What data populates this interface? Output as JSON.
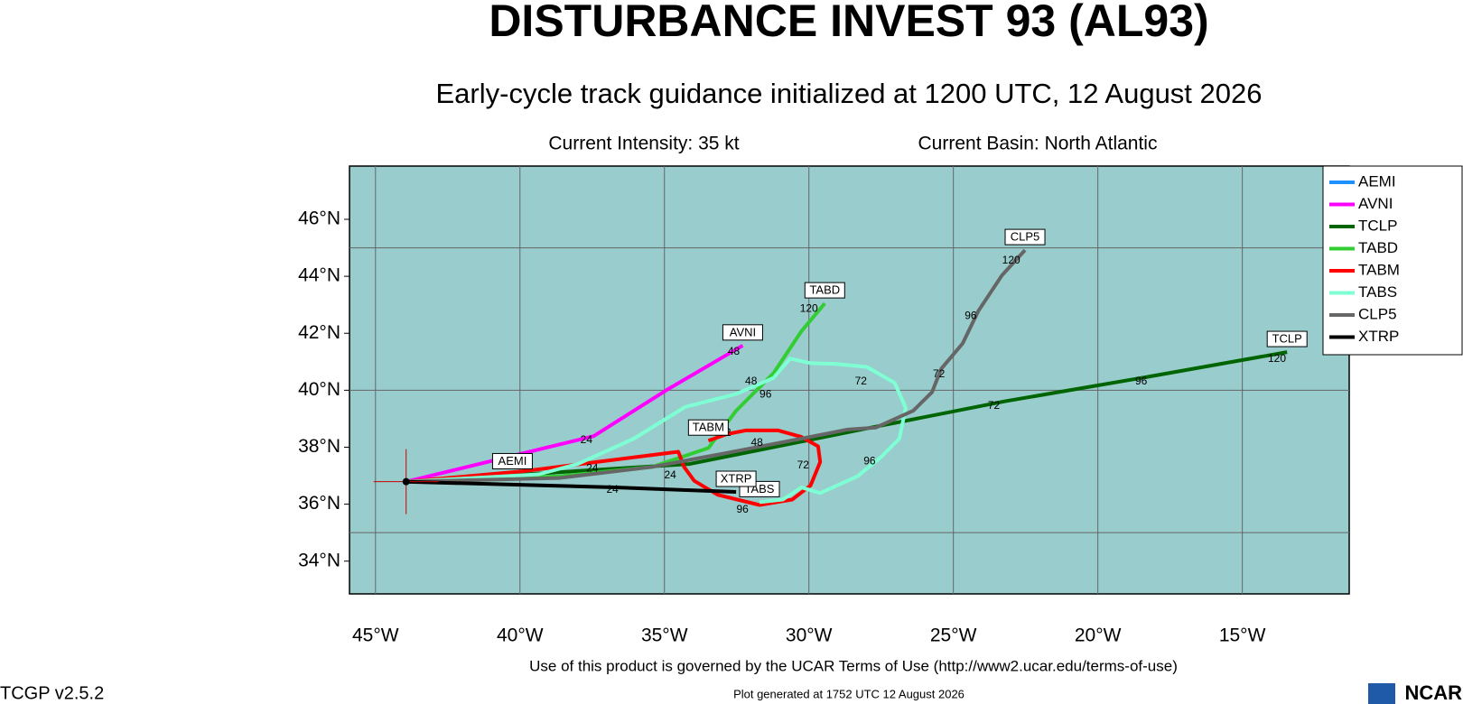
{
  "chart_data": {
    "type": "track",
    "title": "DISTURBANCE INVEST 93 (AL93)",
    "subtitle": "Early-cycle track guidance initialized at 1200 UTC, 12 August 2026",
    "info": [
      "Current Intensity: 35 kt",
      "Current Basin: North Atlantic"
    ],
    "footer": "Use of this product is governed by the UCAR Terms of Use (http://www2.ucar.edu/terms-of-use)",
    "generated": "Plot generated at 1752 UTC   12 August 2026",
    "version": "TCGP v2.5.2",
    "logo": "NCAR",
    "xlim": [
      -45.9,
      -11.3
    ],
    "ylim": [
      32.85,
      47.87
    ],
    "xticks": [
      {
        "value": -45,
        "label": "45°W"
      },
      {
        "value": -40,
        "label": "40°W"
      },
      {
        "value": -35,
        "label": "35°W"
      },
      {
        "value": -30,
        "label": "30°W"
      },
      {
        "value": -25,
        "label": "25°W"
      },
      {
        "value": -20,
        "label": "20°W"
      },
      {
        "value": -15,
        "label": "15°W"
      }
    ],
    "yticks": [
      {
        "value": 34,
        "label": "34°N"
      },
      {
        "value": 36,
        "label": "36°N"
      },
      {
        "value": 38,
        "label": "38°N"
      },
      {
        "value": 40,
        "label": "40°N"
      },
      {
        "value": 42,
        "label": "42°N"
      },
      {
        "value": 44,
        "label": "44°N"
      },
      {
        "value": 46,
        "label": "46°N"
      }
    ],
    "grid_lat": [
      35,
      40,
      45
    ],
    "series": [
      {
        "name": "AEMI",
        "color": "#1e90ff",
        "x": [
          -43.94,
          -40.26
        ],
        "values": [
          36.79,
          37.05
        ]
      },
      {
        "name": "AVNI",
        "color": "#ff00ff",
        "x": [
          -43.94,
          -37.45,
          -34.94,
          -32.29
        ],
        "values": [
          36.79,
          38.39,
          40.0,
          41.57
        ]
      },
      {
        "name": "TCLP",
        "color": "#006400",
        "x": [
          -43.94,
          -34.13,
          -27.84,
          -23.23,
          -18.16,
          -13.45
        ],
        "values": [
          36.79,
          37.41,
          38.69,
          39.61,
          40.49,
          41.34
        ]
      },
      {
        "name": "TABD",
        "color": "#32cd32",
        "x": [
          -43.94,
          -38.65,
          -35.42,
          -33.48,
          -32.52,
          -31.23,
          -30.26,
          -29.45
        ],
        "values": [
          36.79,
          36.98,
          37.31,
          37.97,
          39.28,
          40.59,
          42.07,
          43.05
        ]
      },
      {
        "name": "TABM",
        "color": "#ff0000",
        "x": [
          -43.94,
          -39.94,
          -37.35,
          -34.52,
          -34.32,
          -33.97,
          -33.16,
          -31.71,
          -30.58,
          -29.94,
          -29.61,
          -29.68,
          -30.26,
          -31.06,
          -32.19,
          -32.84,
          -33.48
        ],
        "values": [
          36.79,
          37.15,
          37.48,
          37.84,
          37.31,
          36.82,
          36.33,
          35.97,
          36.16,
          36.66,
          37.48,
          38.03,
          38.36,
          38.59,
          38.59,
          38.46,
          38.23
        ]
      },
      {
        "name": "TABS",
        "color": "#7fffd4",
        "x": [
          -43.94,
          -39.35,
          -38.0,
          -36.06,
          -34.29,
          -32.52,
          -31.23,
          -30.65,
          -29.94,
          -29.06,
          -28.0,
          -27.03,
          -26.65,
          -26.87,
          -27.52,
          -28.32,
          -29.61,
          -30.26,
          -30.9,
          -31.71
        ],
        "values": [
          36.79,
          37.05,
          37.41,
          38.3,
          39.41,
          39.87,
          40.43,
          41.11,
          40.95,
          40.92,
          40.82,
          40.26,
          39.38,
          38.3,
          37.64,
          36.98,
          36.39,
          36.59,
          36.16,
          36.07
        ]
      },
      {
        "name": "CLP5",
        "color": "#666666",
        "x": [
          -43.94,
          -38.65,
          -35.42,
          -32.84,
          -30.26,
          -28.65,
          -27.68,
          -26.39,
          -25.74,
          -25.42,
          -24.68,
          -24.13,
          -23.32,
          -22.52
        ],
        "values": [
          36.79,
          36.92,
          37.31,
          37.8,
          38.3,
          38.62,
          38.69,
          39.28,
          39.93,
          40.75,
          41.64,
          42.79,
          44.03,
          44.92
        ]
      },
      {
        "name": "XTRP",
        "color": "#000000",
        "x": [
          -43.94,
          -39.29,
          -36.71,
          -34.13,
          -32.52
        ],
        "values": [
          36.79,
          36.66,
          36.59,
          36.49,
          36.43
        ]
      }
    ],
    "annotations": [
      {
        "text": "24",
        "x": -37.7,
        "y": 38.25
      },
      {
        "text": "48",
        "x": -32.6,
        "y": 41.35
      },
      {
        "text": "24",
        "x": -36.8,
        "y": 36.5
      },
      {
        "text": "72",
        "x": -23.6,
        "y": 39.45
      },
      {
        "text": "96",
        "x": -18.5,
        "y": 40.3
      },
      {
        "text": "120",
        "x": -13.8,
        "y": 41.1
      },
      {
        "text": "120",
        "x": -30.0,
        "y": 42.85
      },
      {
        "text": "72",
        "x": -25.5,
        "y": 40.55
      },
      {
        "text": "96",
        "x": -24.4,
        "y": 42.6
      },
      {
        "text": "120",
        "x": -23.0,
        "y": 44.55
      },
      {
        "text": "72",
        "x": -28.2,
        "y": 40.3
      },
      {
        "text": "48",
        "x": -32.0,
        "y": 40.3
      },
      {
        "text": "96",
        "x": -31.5,
        "y": 39.85
      },
      {
        "text": "72",
        "x": -32.9,
        "y": 38.5
      },
      {
        "text": "48",
        "x": -31.8,
        "y": 38.15
      },
      {
        "text": "72",
        "x": -30.2,
        "y": 37.35
      },
      {
        "text": "96",
        "x": -27.9,
        "y": 37.5
      },
      {
        "text": "96",
        "x": -32.3,
        "y": 35.8
      },
      {
        "text": "24",
        "x": -34.8,
        "y": 37.0
      },
      {
        "text": "24",
        "x": -37.5,
        "y": 37.25
      }
    ]
  }
}
